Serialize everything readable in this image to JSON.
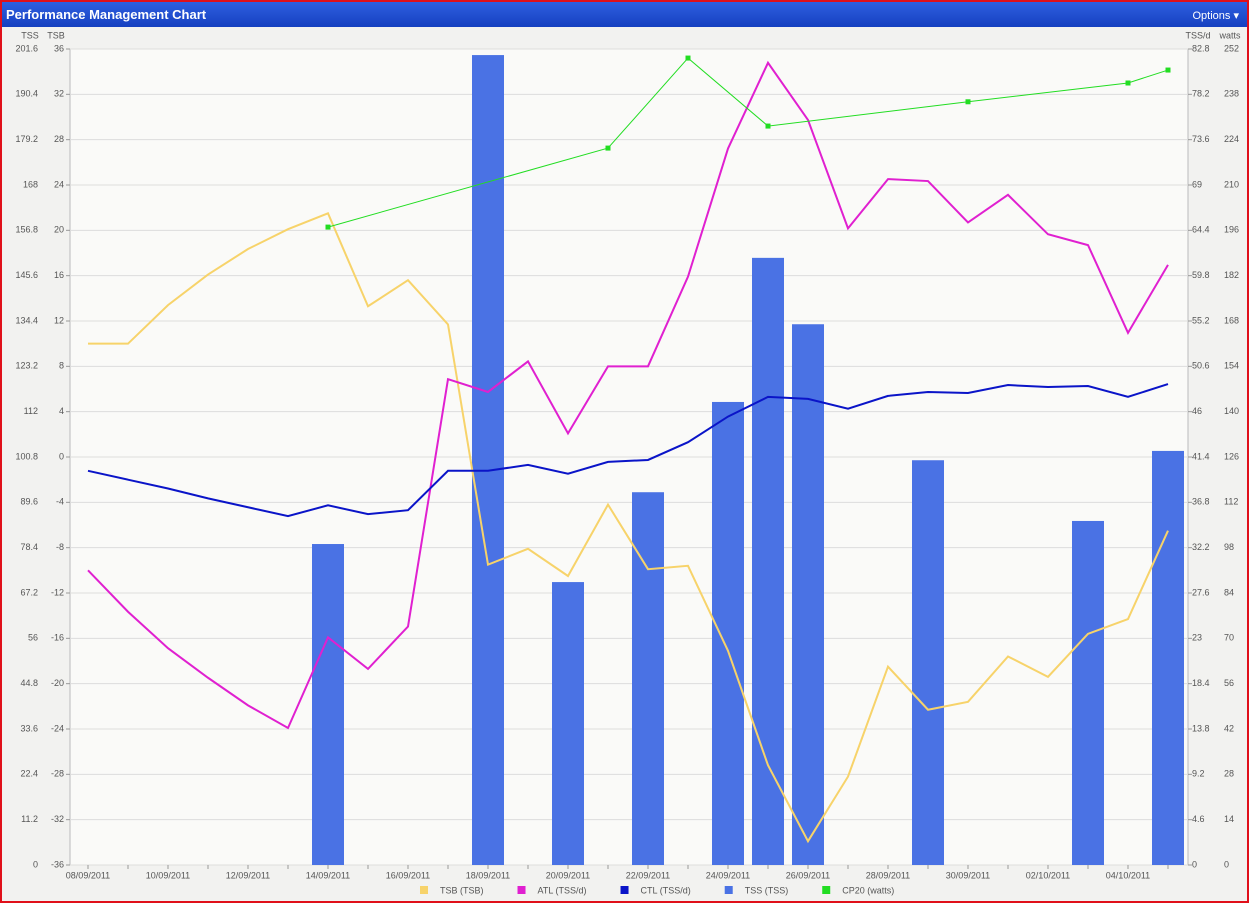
{
  "header": {
    "title": "Performance Management Chart",
    "options": "Options ▾"
  },
  "chart_data": {
    "type": "line",
    "categories": [
      "08/09/2011",
      null,
      "10/09/2011",
      null,
      "12/09/2011",
      null,
      "14/09/2011",
      null,
      "16/09/2011",
      null,
      "18/09/2011",
      null,
      "20/09/2011",
      null,
      "22/09/2011",
      null,
      "24/09/2011",
      null,
      "26/09/2011",
      null,
      "28/09/2011",
      null,
      "30/09/2011",
      null,
      "02/10/2011",
      null,
      "04/10/2011",
      null
    ],
    "axes": [
      {
        "title": "TSS",
        "side": "left",
        "lim": [
          0,
          201.6
        ],
        "ticks": [
          0,
          11.2,
          22.4,
          33.6,
          44.8,
          56,
          67.2,
          78.4,
          89.6,
          100.8,
          112,
          123.2,
          134.4,
          145.6,
          156.8,
          168,
          179.2,
          190.4,
          201.6
        ]
      },
      {
        "title": "TSB",
        "side": "left",
        "lim": [
          -36,
          36
        ],
        "ticks": [
          -36,
          -32,
          -28,
          -24,
          -20,
          -16,
          -12,
          -8,
          -4,
          0,
          4,
          8,
          12,
          16,
          20,
          24,
          28,
          32,
          36
        ]
      },
      {
        "title": "TSS/d",
        "side": "right",
        "lim": [
          0,
          82.8
        ],
        "ticks": [
          0,
          4.6,
          9.2,
          13.8,
          18.4,
          23,
          27.6,
          32.2,
          36.8,
          41.4,
          46,
          50.6,
          55.2,
          59.8,
          64.4,
          69,
          73.6,
          78.2,
          82.8
        ]
      },
      {
        "title": "watts",
        "side": "right",
        "lim": [
          0,
          252
        ],
        "ticks": [
          0,
          14,
          28,
          42,
          56,
          70,
          84,
          98,
          112,
          126,
          140,
          154,
          168,
          182,
          196,
          210,
          224,
          238,
          252
        ]
      }
    ],
    "grid": true,
    "legend": "bottom",
    "series": [
      {
        "name": "TSS (TSS)",
        "type": "bar",
        "axis": 0,
        "color": "#4a72e4",
        "values": [
          null,
          null,
          null,
          null,
          null,
          null,
          79.3,
          null,
          null,
          null,
          200.1,
          null,
          69.9,
          null,
          92.1,
          null,
          114.4,
          150.0,
          133.6,
          null,
          null,
          100.0,
          null,
          null,
          null,
          85.0,
          null,
          102.3
        ]
      },
      {
        "name": "TSB (TSB)",
        "type": "line",
        "axis": 1,
        "color": "#f7d36a",
        "values": [
          10,
          10,
          13.4,
          16.1,
          18.35,
          20.1,
          21.5,
          13.3,
          15.6,
          11.7,
          -9.5,
          -8.1,
          -10.5,
          -4.2,
          -9.9,
          -9.6,
          -17.1,
          -27.2,
          -33.9,
          -28.2,
          -18.5,
          -22.3,
          -21.6,
          -17.6,
          -19.4,
          -15.6,
          -14.3,
          -6.5
        ]
      },
      {
        "name": "ATL (TSS/d)",
        "type": "line",
        "axis": 2,
        "color": "#e020d0",
        "values": [
          29.9,
          25.7,
          22.0,
          19.0,
          16.2,
          13.9,
          23.1,
          19.9,
          24.2,
          49.3,
          48.0,
          51.1,
          43.8,
          50.6,
          50.6,
          59.7,
          72.7,
          81.4,
          75.6,
          64.6,
          69.6,
          69.4,
          65.2,
          68.0,
          64.0,
          62.9,
          54.0,
          60.9
        ]
      },
      {
        "name": "CTL (TSS/d)",
        "type": "line",
        "axis": 2,
        "color": "#0a14c8",
        "values": [
          40.0,
          39.1,
          38.2,
          37.2,
          36.3,
          35.4,
          36.5,
          35.6,
          36.0,
          40.0,
          40.0,
          40.6,
          39.7,
          40.9,
          41.1,
          42.9,
          45.5,
          47.5,
          47.3,
          46.3,
          47.6,
          48.0,
          47.9,
          48.7,
          48.5,
          48.6,
          47.5,
          48.8
        ]
      },
      {
        "name": "CP20 (watts)",
        "type": "line",
        "axis": 3,
        "color": "#22dd22",
        "connect_gaps": true,
        "markers": true,
        "values": [
          null,
          null,
          null,
          null,
          null,
          null,
          197.0,
          null,
          null,
          null,
          null,
          null,
          null,
          221.4,
          null,
          249.2,
          null,
          228.2,
          null,
          null,
          null,
          null,
          235.7,
          null,
          null,
          null,
          241.5,
          245.5
        ]
      }
    ],
    "legend_order": [
      1,
      2,
      3,
      0,
      4
    ]
  }
}
